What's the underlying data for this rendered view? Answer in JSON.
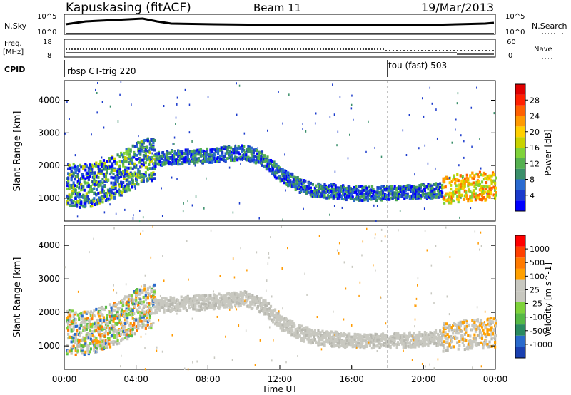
{
  "header": {
    "station": "Kapuskasing (fitACF)",
    "beam": "Beam 11",
    "date": "19/Mar/2013"
  },
  "strips": {
    "nsky_label": "N.Sky",
    "nsearch_label": "N.Search",
    "left_top_tick": "10^5",
    "left_bottom_tick": "10^0",
    "right_top_tick": "10^5",
    "right_bottom_tick": "10^0",
    "freq_label": "Freq.",
    "freq_unit": "[MHz]",
    "freq_top_tick": "18",
    "freq_bottom_tick": "8",
    "nave_label": "Nave",
    "nave_top_tick": "60",
    "nave_bottom_tick": "0",
    "cpid_label": "CPID",
    "cpid_1": "rbsp CT-trig 220",
    "cpid_2": "tou (fast) 503",
    "cpid_switch_hour": 18
  },
  "chart_data": [
    {
      "type": "heatmap",
      "name": "power",
      "ylabel": "Slant Range [km]",
      "xlabel": "",
      "xlim": [
        0,
        24
      ],
      "ylim": [
        300,
        4600
      ],
      "yticks": [
        1000,
        2000,
        3000,
        4000
      ],
      "colorbar": {
        "label": "Power [dB]",
        "ticks": [
          "28",
          "24",
          "20",
          "16",
          "12",
          "8",
          "4"
        ],
        "colors": [
          "#0000ff",
          "#1a3acc",
          "#2a6ad0",
          "#3a8f6a",
          "#55b050",
          "#7fd23a",
          "#c8d200",
          "#ffd000",
          "#ff9a00",
          "#ff6000",
          "#ff2000",
          "#e00000"
        ]
      },
      "dominant_band": [
        {
          "x": 0.5,
          "y": 1350
        },
        {
          "x": 1.5,
          "y": 1400
        },
        {
          "x": 3.0,
          "y": 1700
        },
        {
          "x": 4.3,
          "y": 2150
        },
        {
          "x": 6.0,
          "y": 2250
        },
        {
          "x": 8.0,
          "y": 2300
        },
        {
          "x": 10.0,
          "y": 2400
        },
        {
          "x": 11.0,
          "y": 2200
        },
        {
          "x": 12.0,
          "y": 1700
        },
        {
          "x": 13.0,
          "y": 1400
        },
        {
          "x": 14.0,
          "y": 1250
        },
        {
          "x": 16.0,
          "y": 1150
        },
        {
          "x": 18.0,
          "y": 1150
        },
        {
          "x": 20.0,
          "y": 1200
        },
        {
          "x": 22.0,
          "y": 1300
        },
        {
          "x": 24.0,
          "y": 1400
        }
      ]
    },
    {
      "type": "heatmap",
      "name": "velocity",
      "ylabel": "Slant Range [km]",
      "xlabel": "Time UT",
      "xlim": [
        0,
        24
      ],
      "ylim": [
        300,
        4600
      ],
      "yticks": [
        1000,
        2000,
        3000,
        4000
      ],
      "xticks": [
        "00:00",
        "04:00",
        "08:00",
        "12:00",
        "16:00",
        "20:00",
        "00:00"
      ],
      "colorbar": {
        "label": "Velocity [m s^-1]",
        "ticks": [
          "1000",
          "500",
          "100",
          "25",
          "-25",
          "-100",
          "-500",
          "-1000"
        ],
        "colors": [
          "#1a40b0",
          "#2a6acc",
          "#2a8a60",
          "#55b845",
          "#7ed23a",
          "#c8c8c0",
          "#c8c8c0",
          "#ffa000",
          "#ff7a00",
          "#ff4000",
          "#ff0000"
        ]
      }
    }
  ]
}
